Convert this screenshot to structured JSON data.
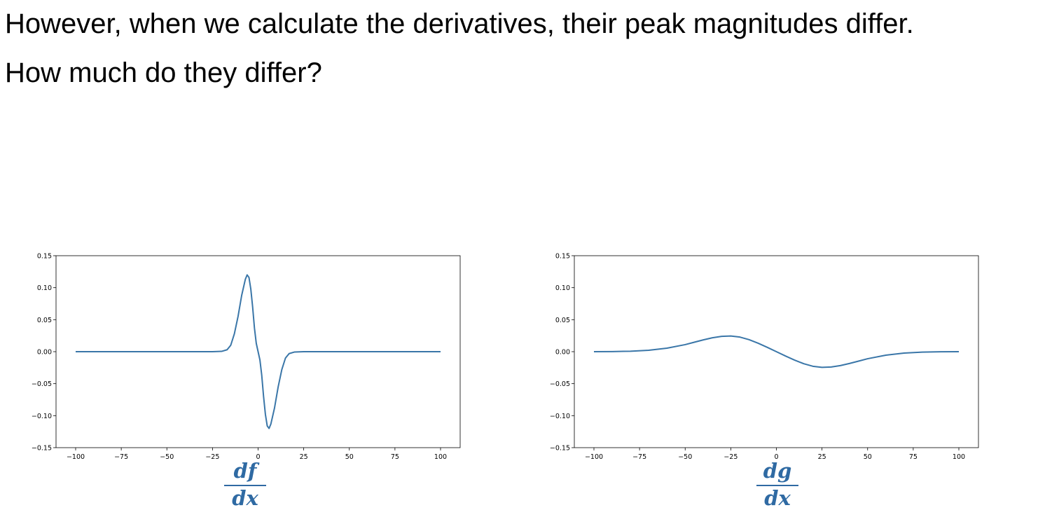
{
  "slide": {
    "line1": "However, when we calculate the derivatives, their peak magnitudes differ.",
    "line2": "How much do they differ?"
  },
  "labels": {
    "left": {
      "num": "df",
      "den": "dx"
    },
    "right": {
      "num": "dg",
      "den": "dx"
    }
  },
  "chart_data": [
    {
      "type": "line",
      "title": "",
      "xlabel": "",
      "ylabel": "",
      "xlim": [
        -100,
        100
      ],
      "ylim": [
        -0.15,
        0.15
      ],
      "xticks": [
        -100,
        -75,
        -50,
        -25,
        0,
        25,
        50,
        75,
        100
      ],
      "yticks": [
        -0.15,
        -0.1,
        -0.05,
        0.0,
        0.05,
        0.1,
        0.15
      ],
      "grid": false,
      "line_color": "#3a76a8",
      "series": [
        {
          "x": [
            -100,
            -25,
            -20,
            -17,
            -15,
            -13,
            -11,
            -9,
            -7,
            -6,
            -5,
            -4,
            -3,
            -2,
            -1,
            0,
            1,
            2,
            3,
            4,
            5,
            6,
            7,
            9,
            11,
            13,
            15,
            17,
            20,
            25,
            100
          ],
          "y": [
            0,
            0,
            0.0005,
            0.003,
            0.01,
            0.028,
            0.055,
            0.088,
            0.113,
            0.12,
            0.116,
            0.098,
            0.07,
            0.037,
            0.013,
            0,
            -0.013,
            -0.037,
            -0.07,
            -0.098,
            -0.116,
            -0.12,
            -0.113,
            -0.088,
            -0.055,
            -0.028,
            -0.01,
            -0.003,
            -0.0005,
            0,
            0
          ]
        }
      ]
    },
    {
      "type": "line",
      "title": "",
      "xlabel": "",
      "ylabel": "",
      "xlim": [
        -100,
        100
      ],
      "ylim": [
        -0.15,
        0.15
      ],
      "xticks": [
        -100,
        -75,
        -50,
        -25,
        0,
        25,
        50,
        75,
        100
      ],
      "yticks": [
        -0.15,
        -0.1,
        -0.05,
        0.0,
        0.05,
        0.1,
        0.15
      ],
      "grid": false,
      "line_color": "#3a76a8",
      "series": [
        {
          "x": [
            -100,
            -90,
            -80,
            -70,
            -60,
            -50,
            -45,
            -40,
            -35,
            -30,
            -25,
            -20,
            -15,
            -10,
            -5,
            0,
            5,
            10,
            15,
            20,
            25,
            30,
            35,
            40,
            45,
            50,
            60,
            70,
            80,
            90,
            100
          ],
          "y": [
            0,
            0.0002,
            0.0007,
            0.0022,
            0.0055,
            0.011,
            0.0148,
            0.0185,
            0.0218,
            0.024,
            0.0245,
            0.0228,
            0.0188,
            0.0132,
            0.0068,
            0,
            -0.0068,
            -0.0132,
            -0.0188,
            -0.0228,
            -0.0245,
            -0.024,
            -0.0218,
            -0.0185,
            -0.0148,
            -0.011,
            -0.0055,
            -0.0022,
            -0.0007,
            -0.0002,
            0
          ]
        }
      ]
    }
  ]
}
